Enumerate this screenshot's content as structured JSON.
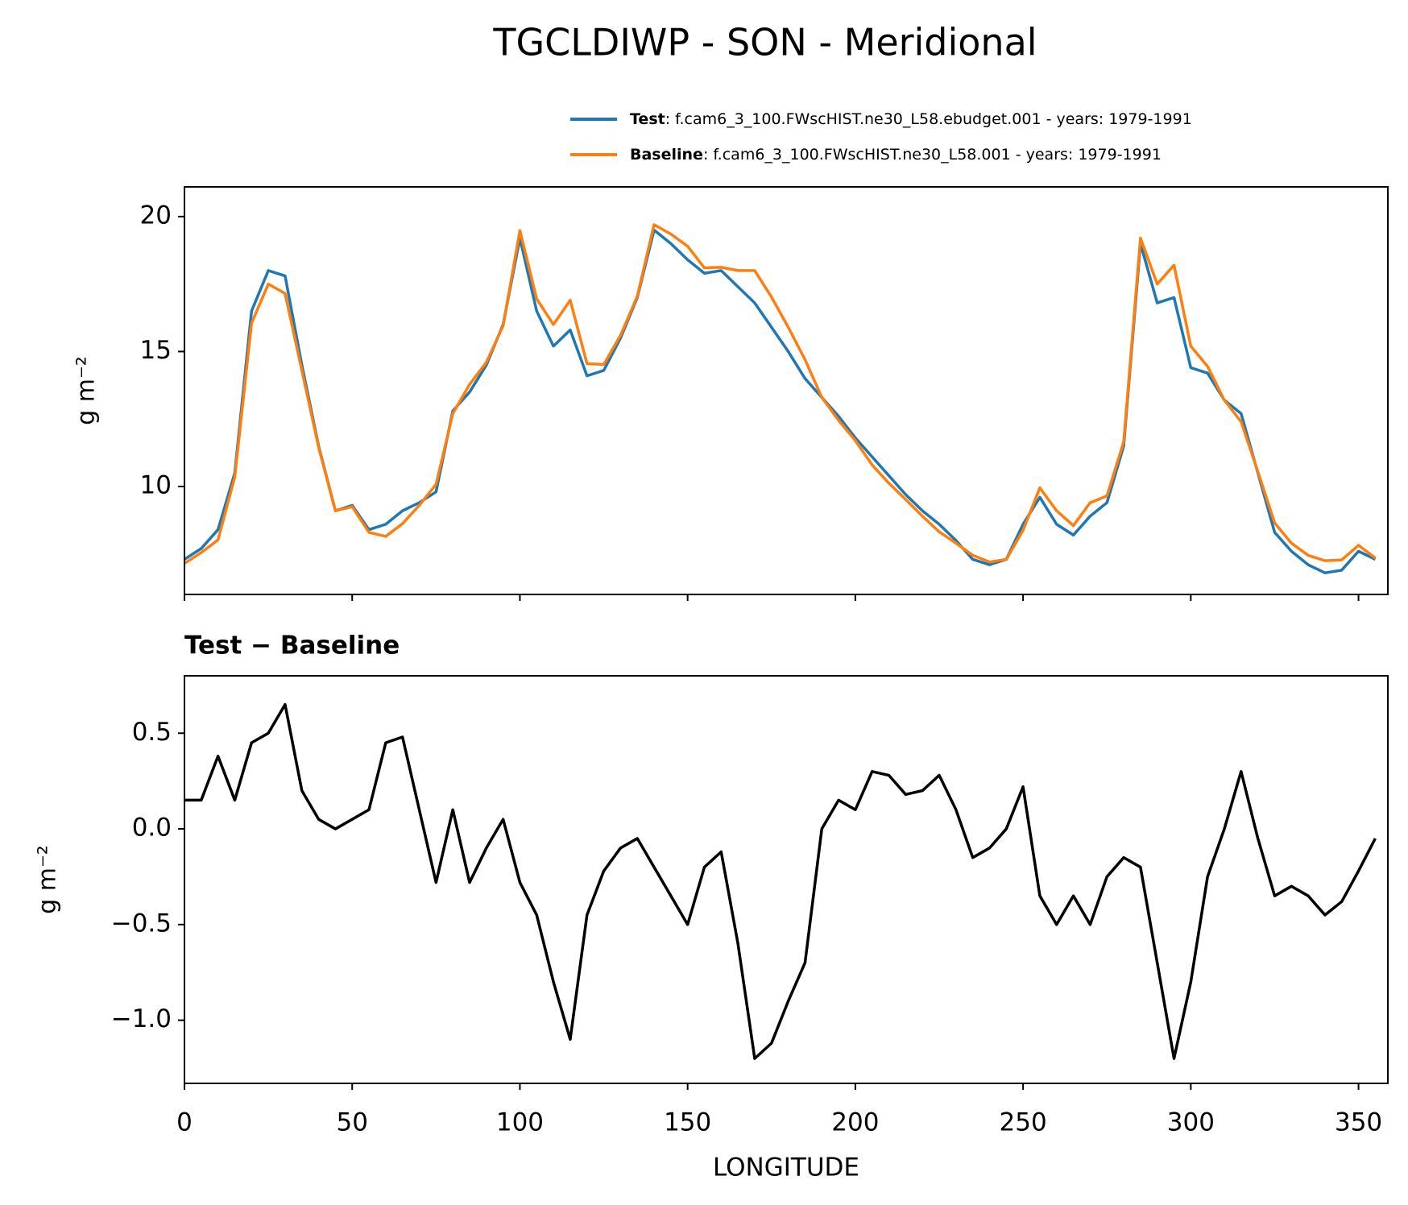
{
  "chart_data": [
    {
      "type": "line",
      "title": "TGCLDIWP - SON - Meridional",
      "ylabel": "g m⁻²",
      "legend_details": [
        ": f.cam6_3_100.FWscHIST.ne30_L58.ebudget.001 - years: 1979-1991",
        ": f.cam6_3_100.FWscHIST.ne30_L58.001 - years: 1979-1991"
      ],
      "legend": "upper right",
      "x": [
        0,
        5,
        10,
        15,
        20,
        25,
        30,
        35,
        40,
        45,
        50,
        55,
        60,
        65,
        70,
        75,
        80,
        85,
        90,
        95,
        100,
        105,
        110,
        115,
        120,
        125,
        130,
        135,
        140,
        145,
        150,
        155,
        160,
        165,
        170,
        175,
        180,
        185,
        190,
        195,
        200,
        205,
        210,
        215,
        220,
        225,
        230,
        235,
        240,
        245,
        250,
        255,
        260,
        265,
        270,
        275,
        280,
        285,
        290,
        295,
        300,
        305,
        310,
        315,
        320,
        325,
        330,
        335,
        340,
        345,
        350,
        355
      ],
      "series": [
        {
          "name": "Test",
          "color": "#1f77b4",
          "values": [
            7.3,
            7.7,
            8.4,
            10.5,
            16.5,
            18.0,
            17.8,
            14.5,
            11.5,
            9.1,
            9.3,
            8.4,
            8.6,
            9.1,
            9.4,
            9.8,
            12.8,
            13.5,
            14.5,
            16.0,
            19.2,
            16.5,
            15.2,
            15.8,
            14.1,
            14.3,
            15.5,
            17.0,
            19.5,
            19.0,
            18.4,
            17.9,
            18.0,
            17.4,
            16.8,
            15.9,
            15.0,
            14.0,
            13.3,
            12.6,
            11.8,
            11.1,
            10.4,
            9.7,
            9.1,
            8.6,
            8.0,
            7.3,
            7.1,
            7.3,
            8.6,
            9.6,
            8.6,
            8.2,
            8.9,
            9.4,
            11.5,
            19.0,
            16.8,
            17.0,
            14.4,
            14.2,
            13.2,
            12.7,
            10.5,
            8.3,
            7.6,
            7.1,
            6.8,
            6.9,
            7.6,
            7.3
          ]
        },
        {
          "name": "Baseline",
          "color": "#ff7f0e",
          "values": [
            7.15,
            7.55,
            8.02,
            10.35,
            16.05,
            17.5,
            17.15,
            14.3,
            11.45,
            9.1,
            9.25,
            8.3,
            8.15,
            8.62,
            9.3,
            10.08,
            12.7,
            13.78,
            14.6,
            15.95,
            19.48,
            16.95,
            16.0,
            16.9,
            14.55,
            14.52,
            15.6,
            17.05,
            19.7,
            19.35,
            18.9,
            18.1,
            18.12,
            18.0,
            18.0,
            17.02,
            15.9,
            14.7,
            13.3,
            12.45,
            11.7,
            10.8,
            10.12,
            9.52,
            8.9,
            8.32,
            7.9,
            7.45,
            7.2,
            7.3,
            8.38,
            9.95,
            9.1,
            8.55,
            9.4,
            9.65,
            11.65,
            19.2,
            17.5,
            18.2,
            15.2,
            14.45,
            13.2,
            12.4,
            10.55,
            8.65,
            7.9,
            7.45,
            7.25,
            7.28,
            7.82,
            7.35
          ]
        }
      ],
      "xlim": [
        0,
        358.75
      ],
      "xticks": [
        0,
        50,
        100,
        150,
        200,
        250,
        300,
        350
      ],
      "ylim": [
        6.0,
        21.1
      ],
      "yticks": [
        10,
        15,
        20
      ]
    },
    {
      "type": "line",
      "title": "Test − Baseline",
      "ylabel": "g m⁻²",
      "xlabel": "LONGITUDE",
      "x": [
        0,
        5,
        10,
        15,
        20,
        25,
        30,
        35,
        40,
        45,
        50,
        55,
        60,
        65,
        70,
        75,
        80,
        85,
        90,
        95,
        100,
        105,
        110,
        115,
        120,
        125,
        130,
        135,
        140,
        145,
        150,
        155,
        160,
        165,
        170,
        175,
        180,
        185,
        190,
        195,
        200,
        205,
        210,
        215,
        220,
        225,
        230,
        235,
        240,
        245,
        250,
        255,
        260,
        265,
        270,
        275,
        280,
        285,
        290,
        295,
        300,
        305,
        310,
        315,
        320,
        325,
        330,
        335,
        340,
        345,
        350,
        355
      ],
      "series": [
        {
          "color": "#000000",
          "values": [
            0.15,
            0.15,
            0.38,
            0.15,
            0.45,
            0.5,
            0.65,
            0.2,
            0.05,
            0.0,
            0.05,
            0.1,
            0.45,
            0.48,
            0.1,
            -0.28,
            0.1,
            -0.28,
            -0.1,
            0.05,
            -0.28,
            -0.45,
            -0.8,
            -1.1,
            -0.45,
            -0.22,
            -0.1,
            -0.05,
            -0.2,
            -0.35,
            -0.5,
            -0.2,
            -0.12,
            -0.6,
            -1.2,
            -1.12,
            -0.9,
            -0.7,
            0.0,
            0.15,
            0.1,
            0.3,
            0.28,
            0.18,
            0.2,
            0.28,
            0.1,
            -0.15,
            -0.1,
            0.0,
            0.22,
            -0.35,
            -0.5,
            -0.35,
            -0.5,
            -0.25,
            -0.15,
            -0.2,
            -0.7,
            -1.2,
            -0.8,
            -0.25,
            0.0,
            0.3,
            -0.05,
            -0.35,
            -0.3,
            -0.35,
            -0.45,
            -0.38,
            -0.22,
            -0.05
          ]
        }
      ],
      "xlim": [
        0,
        358.75
      ],
      "xticks": [
        0,
        50,
        100,
        150,
        200,
        250,
        300,
        350
      ],
      "ylim": [
        -1.33,
        0.8
      ],
      "yticks": [
        {
          "value": -1.0,
          "label": "−1.0"
        },
        {
          "value": -0.5,
          "label": "−0.5"
        },
        {
          "value": 0.0,
          "label": "0.0"
        },
        0.5
      ]
    }
  ]
}
